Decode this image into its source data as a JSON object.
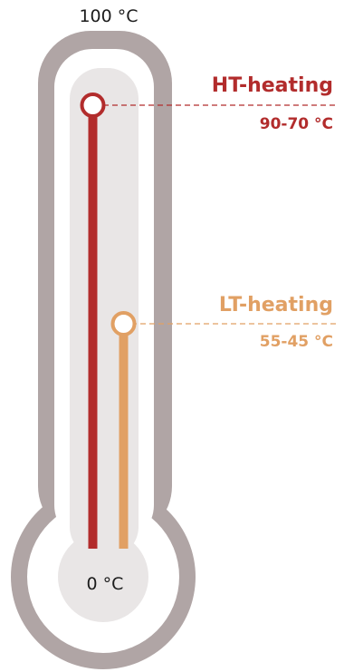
{
  "scale": {
    "max_label": "100 °C",
    "min_label": "0 °C",
    "max_value": 100,
    "min_value": 0
  },
  "series": [
    {
      "key": "ht",
      "name": "HT-heating",
      "range_label": "90-70 °C",
      "value": 90,
      "color": "#b22c2c"
    },
    {
      "key": "lt",
      "name": "LT-heating",
      "range_label": "55-45 °C",
      "value": 55,
      "color": "#e1a064"
    }
  ],
  "colors": {
    "outer_body": "#b0a5a5",
    "inner_body": "#e9e6e6",
    "dash_line": "#d7a08f"
  }
}
